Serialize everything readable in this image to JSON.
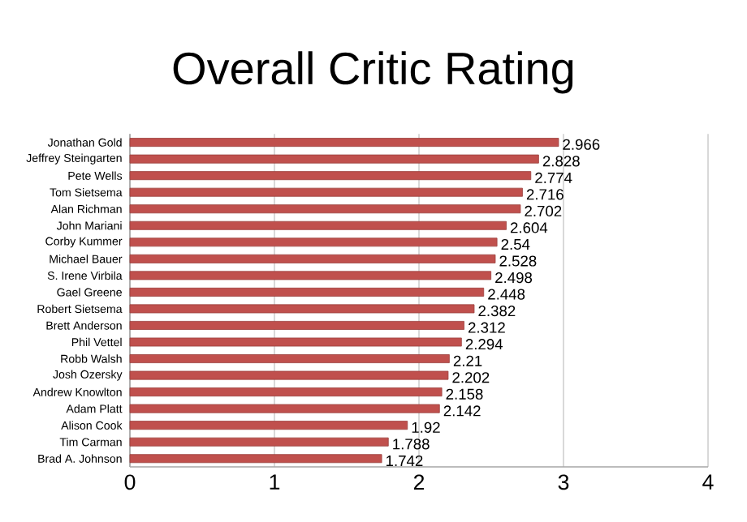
{
  "chart_data": {
    "type": "bar",
    "orientation": "horizontal",
    "title": "Overall Critic Rating",
    "categories": [
      "Jonathan Gold",
      "Jeffrey Steingarten",
      "Pete Wells",
      "Tom Sietsema",
      "Alan Richman",
      "John Mariani",
      "Corby Kummer",
      "Michael Bauer",
      "S. Irene Virbila",
      "Gael Greene",
      "Robert Sietsema",
      "Brett Anderson",
      "Phil Vettel",
      "Robb Walsh",
      "Josh Ozersky",
      "Andrew Knowlton",
      "Adam Platt",
      "Alison Cook",
      "Tim Carman",
      "Brad A. Johnson"
    ],
    "values": [
      2.966,
      2.828,
      2.774,
      2.716,
      2.702,
      2.604,
      2.54,
      2.528,
      2.498,
      2.448,
      2.382,
      2.312,
      2.294,
      2.21,
      2.202,
      2.158,
      2.142,
      1.92,
      1.788,
      1.742
    ],
    "color": "#c0504d",
    "xlim": [
      0,
      4
    ],
    "xticks": [
      0,
      1,
      2,
      3,
      4
    ],
    "grid": "x",
    "data_labels": true
  }
}
